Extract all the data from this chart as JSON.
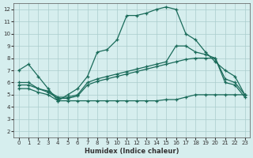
{
  "xlabel": "Humidex (Indice chaleur)",
  "bg_color": "#d6eeee",
  "grid_color": "#aacccc",
  "line_color": "#1a6b5a",
  "xlim": [
    -0.5,
    23.5
  ],
  "ylim": [
    1.5,
    12.5
  ],
  "xticks": [
    0,
    1,
    2,
    3,
    4,
    5,
    6,
    7,
    8,
    9,
    10,
    11,
    12,
    13,
    14,
    15,
    16,
    17,
    18,
    19,
    20,
    21,
    22,
    23
  ],
  "yticks": [
    2,
    3,
    4,
    5,
    6,
    7,
    8,
    9,
    10,
    11,
    12
  ],
  "line1_x": [
    0,
    1,
    2,
    3,
    4,
    5,
    6,
    7,
    8,
    9,
    10,
    11,
    12,
    13,
    14,
    15,
    16,
    17,
    18,
    19,
    20,
    21,
    22,
    23
  ],
  "line1_y": [
    7.0,
    7.5,
    6.5,
    5.5,
    4.5,
    5.0,
    5.5,
    6.5,
    8.5,
    8.7,
    9.5,
    11.5,
    11.5,
    11.7,
    12.0,
    12.2,
    12.0,
    10.0,
    9.5,
    8.5,
    7.7,
    7.0,
    6.5,
    5.0
  ],
  "line2_x": [
    0,
    1,
    2,
    3,
    4,
    5,
    6,
    7,
    8,
    9,
    10,
    11,
    12,
    13,
    14,
    15,
    16,
    17,
    18,
    19,
    20,
    21,
    22,
    23
  ],
  "line2_y": [
    6.0,
    6.0,
    5.5,
    5.3,
    4.8,
    4.8,
    5.0,
    6.0,
    6.3,
    6.5,
    6.7,
    6.9,
    7.1,
    7.3,
    7.5,
    7.7,
    9.0,
    9.0,
    8.5,
    8.3,
    8.0,
    6.3,
    6.0,
    5.0
  ],
  "line3_x": [
    0,
    1,
    2,
    3,
    4,
    5,
    6,
    7,
    8,
    9,
    10,
    11,
    12,
    13,
    14,
    15,
    16,
    17,
    18,
    19,
    20,
    21,
    22,
    23
  ],
  "line3_y": [
    5.8,
    5.8,
    5.5,
    5.2,
    4.7,
    4.7,
    4.9,
    5.8,
    6.1,
    6.3,
    6.5,
    6.7,
    6.9,
    7.1,
    7.3,
    7.5,
    7.7,
    7.9,
    8.0,
    8.0,
    8.0,
    6.0,
    5.8,
    4.8
  ],
  "line4_x": [
    0,
    1,
    2,
    3,
    4,
    5,
    6,
    7,
    8,
    9,
    10,
    11,
    12,
    13,
    14,
    15,
    16,
    17,
    18,
    19,
    20,
    21,
    22,
    23
  ],
  "line4_y": [
    5.5,
    5.5,
    5.2,
    5.0,
    4.5,
    4.5,
    4.5,
    4.5,
    4.5,
    4.5,
    4.5,
    4.5,
    4.5,
    4.5,
    4.5,
    4.6,
    4.6,
    4.8,
    5.0,
    5.0,
    5.0,
    5.0,
    5.0,
    5.0
  ]
}
